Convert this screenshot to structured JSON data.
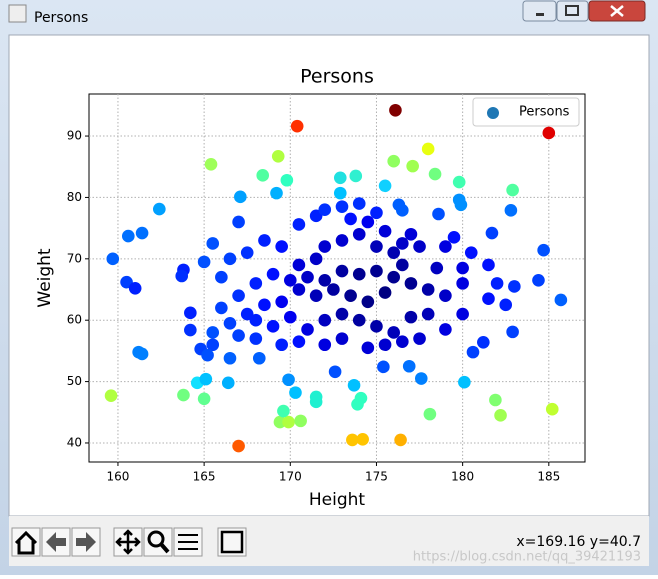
{
  "window_title": "Persons",
  "status": "x=169.16 y=40.7",
  "watermark": "https://blog.csdn.net/qq_39421193",
  "chart_data": {
    "type": "scatter",
    "title": "Persons",
    "x_label": "Height",
    "y_label": "Weight",
    "xlim": [
      158.32,
      187.1
    ],
    "ylim": [
      36.9,
      96.85
    ],
    "xticks": [
      160,
      165,
      170,
      175,
      180,
      185
    ],
    "yticks": [
      40,
      50,
      60,
      70,
      80,
      90
    ],
    "grid": true,
    "legend": "upper right",
    "series": [
      {
        "name": "Persons",
        "color": "#1f77b4",
        "x": [
          176.1,
          185.0,
          170.4,
          167.0,
          176.4,
          173.6,
          174.2,
          178.0,
          169.3,
          165.4,
          176.0,
          177.1,
          178.4,
          179.8,
          182.9,
          168.4,
          169.8,
          172.9,
          173.8,
          175.5,
          172.9,
          169.2,
          167.1,
          162.4,
          159.7,
          160.6,
          161.4,
          159.6,
          161.2,
          161.4,
          163.8,
          165.0,
          164.6,
          165.1,
          166.4,
          169.4,
          169.9,
          170.6,
          169.6,
          170.3,
          169.9,
          171.5,
          171.5,
          173.9,
          174.1,
          173.7,
          178.1,
          181.9,
          182.2,
          185.2,
          180.1,
          177.6,
          176.9,
          175.4,
          172.6,
          180.6,
          181.2,
          182.9,
          185.7,
          184.4,
          184.7,
          182.8,
          181.7,
          178.6,
          179.8,
          179.9,
          176.3,
          176.5,
          167.0,
          160.5,
          161.0,
          163.8,
          163.7,
          164.2,
          164.2,
          165.5,
          164.8,
          165.2,
          166.5,
          168.2,
          170.5,
          171.5,
          172.0,
          173.0,
          174.0,
          175.0,
          173.5,
          174.5,
          176.5,
          177.5,
          179.0,
          180.5,
          181.5,
          180.0,
          182.0,
          183.0,
          182.5,
          181.5,
          180.0,
          179.0,
          178.0,
          177.0,
          176.5,
          176.0,
          175.0,
          174.0,
          173.0,
          172.0,
          171.5,
          170.5,
          169.5,
          168.5,
          167.5,
          166.5,
          165.5,
          165.0,
          166.0,
          167.0,
          168.0,
          169.0,
          170.0,
          171.0,
          172.0,
          173.0,
          174.0,
          175.0,
          176.0,
          175.5,
          174.5,
          173.5,
          172.5,
          171.5,
          170.5,
          169.5,
          168.5,
          167.5,
          166.5,
          166.0,
          168.0,
          169.0,
          170.0,
          171.0,
          172.0,
          173.0,
          174.0,
          175.0,
          176.0,
          177.0,
          178.0,
          179.0,
          177.5,
          176.5,
          175.5,
          174.5,
          173.0,
          172.0,
          170.5,
          169.5,
          168.0,
          167.0,
          165.5,
          178.5,
          180.0,
          179.5,
          177.0,
          175.5
        ],
        "values": [
          94.2,
          90.5,
          91.6,
          39.5,
          40.5,
          40.5,
          40.6,
          87.9,
          86.7,
          85.4,
          85.9,
          85.1,
          83.8,
          82.5,
          81.2,
          83.6,
          82.8,
          83.2,
          83.5,
          81.9,
          80.7,
          80.7,
          80.1,
          78.1,
          70.0,
          73.7,
          74.2,
          47.7,
          54.8,
          54.5,
          47.8,
          47.2,
          49.8,
          50.4,
          49.8,
          43.4,
          43.4,
          43.6,
          45.2,
          48.2,
          50.3,
          47.5,
          46.7,
          46.3,
          47.3,
          49.4,
          44.7,
          47.0,
          44.5,
          45.5,
          49.9,
          50.5,
          52.5,
          52.4,
          51.6,
          54.8,
          56.4,
          58.1,
          63.3,
          66.5,
          71.4,
          77.9,
          74.2,
          77.3,
          79.6,
          78.8,
          78.8,
          77.9,
          76.0,
          66.2,
          65.2,
          68.2,
          67.2,
          61.2,
          58.4,
          56.0,
          55.3,
          54.3,
          53.8,
          53.8,
          75.6,
          77.0,
          78.0,
          78.5,
          79.0,
          77.5,
          76.5,
          76.0,
          72.5,
          72.0,
          72.0,
          71.0,
          69.0,
          68.5,
          66.0,
          65.5,
          62.5,
          63.5,
          61.0,
          64.0,
          65.0,
          66.0,
          69.0,
          71.0,
          72.0,
          74.0,
          73.0,
          72.0,
          70.0,
          69.0,
          72.0,
          73.0,
          71.0,
          70.0,
          72.5,
          69.5,
          67.0,
          64.0,
          66.0,
          67.5,
          66.5,
          67.0,
          66.5,
          68.0,
          67.5,
          68.0,
          67.0,
          64.5,
          63.0,
          64.0,
          65.0,
          64.0,
          65.0,
          63.0,
          62.5,
          61.0,
          59.5,
          62.0,
          60.0,
          59.0,
          60.5,
          58.5,
          60.0,
          61.0,
          60.0,
          59.0,
          58.0,
          60.5,
          61.0,
          58.5,
          57.0,
          56.5,
          56.0,
          55.5,
          57.0,
          56.0,
          56.5,
          56.0,
          57.0,
          57.5,
          58.0,
          68.5,
          66.0,
          73.5,
          74.0,
          74.5
        ],
        "colors": [
          "#800000",
          "#e00000",
          "#ff3000",
          "#ff5a00",
          "#ffb000",
          "#ffc400",
          "#ffc400",
          "#e8ff10",
          "#b0ff40",
          "#9fff5a",
          "#90ff60",
          "#a0ff50",
          "#70ff80",
          "#40ffb0",
          "#50ffa0",
          "#50ffa0",
          "#30ffc0",
          "#20e0e0",
          "#30f0d0",
          "#10d0ff",
          "#00c0ff",
          "#00b0ff",
          "#00a0ff",
          "#00a0ff",
          "#0060ff",
          "#0070ff",
          "#0070ff",
          "#b0ff40",
          "#0080ff",
          "#0080ff",
          "#70ff80",
          "#60ff90",
          "#10e0ff",
          "#00c0ff",
          "#00b0ff",
          "#90ff60",
          "#b0ff40",
          "#90ff60",
          "#40ffb0",
          "#00c0ff",
          "#0090ff",
          "#20f0d0",
          "#20f0d0",
          "#30ffc0",
          "#30ffc0",
          "#00c0ff",
          "#70ff80",
          "#80ff70",
          "#a0ff50",
          "#c0ff30",
          "#00c0ff",
          "#0080ff",
          "#0070ff",
          "#0050ff",
          "#0050ff",
          "#0040ff",
          "#0030ff",
          "#0040ff",
          "#0060ff",
          "#0040ff",
          "#0050ff",
          "#0070ff",
          "#0040ff",
          "#0050ff",
          "#0090ff",
          "#0090ff",
          "#0060ff",
          "#0060ff",
          "#0040ff",
          "#0040ff",
          "#0020ff",
          "#0020ff",
          "#0030ff",
          "#0020ff",
          "#0030ff",
          "#0040ff",
          "#0040ff",
          "#0050ff",
          "#0060ff",
          "#0060ff",
          "#0020ff",
          "#0020ff",
          "#0030ff",
          "#0030ff",
          "#0030ff",
          "#0020ff",
          "#0010ff",
          "#0000f0",
          "#0000c8",
          "#0000c8",
          "#0000e0",
          "#0010ff",
          "#0010ff",
          "#0000e0",
          "#0020ff",
          "#0030ff",
          "#0020ff",
          "#0010ff",
          "#0000e0",
          "#0000c8",
          "#0000a8",
          "#000090",
          "#0000a0",
          "#0000b0",
          "#0000b8",
          "#0000d0",
          "#0000d0",
          "#0000d0",
          "#0000c8",
          "#0000d8",
          "#0010ff",
          "#0020ff",
          "#0030ff",
          "#0040ff",
          "#0050ff",
          "#0050ff",
          "#0040ff",
          "#0030ff",
          "#0020ff",
          "#0010ff",
          "#0000e0",
          "#0000c8",
          "#0000a8",
          "#0000a0",
          "#000090",
          "#000090",
          "#000090",
          "#000080",
          "#000088",
          "#000090",
          "#0000a0",
          "#0000b8",
          "#0000d0",
          "#0000f0",
          "#0010ff",
          "#0020ff",
          "#0040ff",
          "#0040ff",
          "#0020ff",
          "#0010ff",
          "#0000f0",
          "#0000e0",
          "#0000c0",
          "#0000a8",
          "#0000a0",
          "#0000a8",
          "#0000b8",
          "#0000a8",
          "#0000b8",
          "#0000e0",
          "#0000d0",
          "#0000d0",
          "#0000d0",
          "#0000d8",
          "#0000d0",
          "#0000e0",
          "#0010ff",
          "#0020ff",
          "#0030ff",
          "#0040ff",
          "#0050ff",
          "#0000c0",
          "#0000e0",
          "#0010ff",
          "#0000d8",
          "#0000d8"
        ]
      }
    ]
  }
}
